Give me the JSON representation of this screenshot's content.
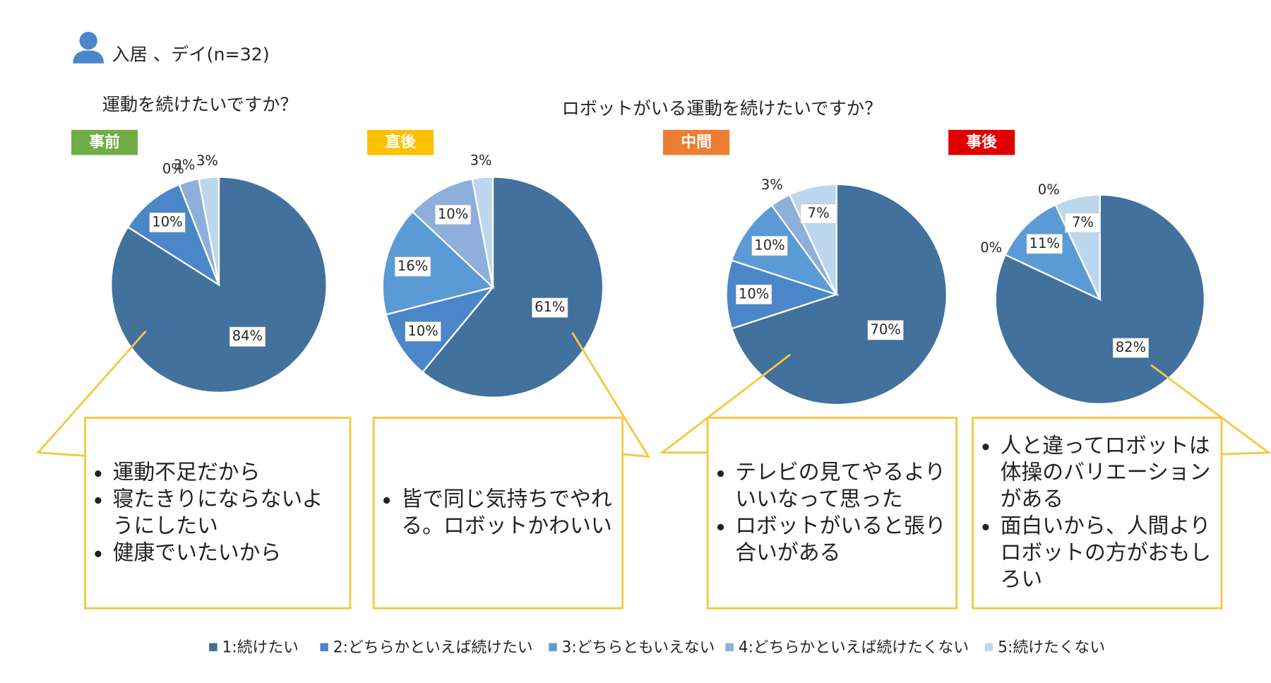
{
  "header": {
    "title": "入居 、デイ(n=32)"
  },
  "questions": [
    "運動を続けたいですか？",
    "ロボットがいる運動を続けたいですか？"
  ],
  "legend": {
    "names": [
      "1:続けたい",
      "2:どちらかといえば続けたい",
      "3:どちらともいえない",
      "4:どちらかといえば続けたくない",
      "5:続けたくない"
    ],
    "colors": [
      "#41719c",
      "#4a86c8",
      "#5b9bd5",
      "#8eaedc",
      "#bdd7ee"
    ]
  },
  "chart_data": [
    {
      "type": "pie",
      "title": "事前",
      "title_color": "#70ad47",
      "values": [
        84,
        10,
        0,
        3,
        3
      ],
      "value_labels": [
        "84%",
        "10%",
        "0%",
        "3%",
        "3%"
      ]
    },
    {
      "type": "pie",
      "title": "直後",
      "title_color": "#ffc000",
      "values": [
        61,
        10,
        16,
        10,
        3
      ],
      "value_labels": [
        "61%",
        "10%",
        "16%",
        "10%",
        "3%"
      ]
    },
    {
      "type": "pie",
      "title": "中間",
      "title_color": "#ed7d31",
      "values": [
        70,
        10,
        10,
        3,
        7
      ],
      "value_labels": [
        "70%",
        "10%",
        "10%",
        "3%",
        "7%"
      ]
    },
    {
      "type": "pie",
      "title": "事後",
      "title_color": "#e00000",
      "values": [
        82,
        0,
        11,
        0,
        7
      ],
      "value_labels": [
        "82%",
        "0%",
        "11%",
        "0%",
        "7%"
      ]
    }
  ],
  "comments": [
    [
      "運動不足だから",
      "寝たきりにならないようにしたい",
      "健康でいたいから"
    ],
    [
      "皆で同じ気持ちでやれる。ロボットかわいい"
    ],
    [
      "テレビの見てやるよりいいなって思った",
      "ロボットがいると張り合いがある"
    ],
    [
      "人と違ってロボットは体操のバリエーションがある",
      "面白いから、人間よりロボットの方がおもしろい"
    ]
  ]
}
